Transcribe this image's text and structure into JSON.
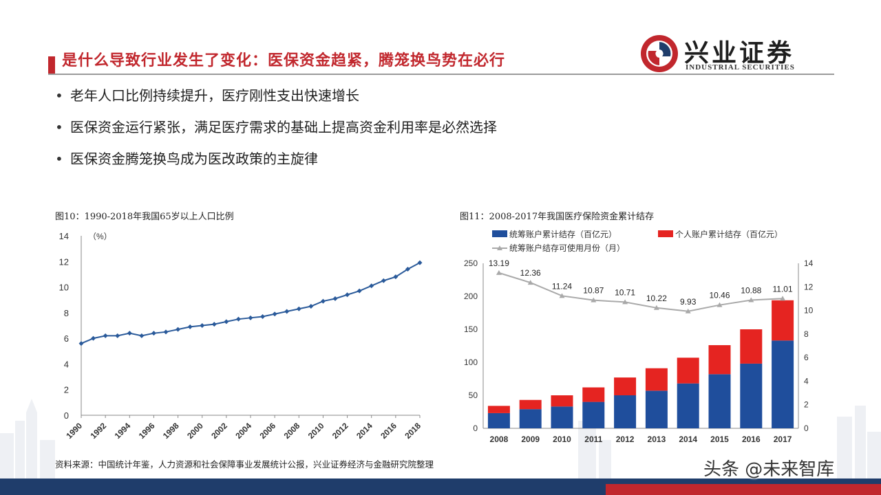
{
  "header": {
    "title": "是什么导致行业发生了变化：医保资金趋紧，腾笼换鸟势在必行",
    "logo_cn": "兴业证券",
    "logo_en": "INDUSTRIAL SECURITIES"
  },
  "bullets": [
    "老年人口比例持续提升，医疗刚性支出快速增长",
    "医保资金运行紧张，满足医疗需求的基础上提高资金利用率是必然选择",
    "医保资金腾笼换鸟成为医改政策的主旋律"
  ],
  "footer": {
    "source": "资料来源：中国统计年鉴，人力资源和社会保障事业发展统计公报，兴业证券经济与金融研究院整理",
    "watermark": "头条 @未来智库"
  },
  "colors": {
    "red": "#c1272d",
    "blue_line": "#2a5a9a",
    "bar_blue": "#1f4e9c",
    "bar_red": "#e52421",
    "gray_line": "#a9a9a9"
  },
  "chart_data": [
    {
      "type": "line",
      "caption": "图10：1990-2018年我国65岁以上人口比例",
      "unit_label": "（%）",
      "x": [
        1990,
        1991,
        1992,
        1993,
        1994,
        1995,
        1996,
        1997,
        1998,
        1999,
        2000,
        2001,
        2002,
        2003,
        2004,
        2005,
        2006,
        2007,
        2008,
        2009,
        2010,
        2011,
        2012,
        2013,
        2014,
        2015,
        2016,
        2017,
        2018
      ],
      "xticks": [
        "1990",
        "1992",
        "1994",
        "1996",
        "1998",
        "2000",
        "2002",
        "2004",
        "2006",
        "2008",
        "2010",
        "2012",
        "2014",
        "2016",
        "2018"
      ],
      "values": [
        5.6,
        6.0,
        6.2,
        6.2,
        6.4,
        6.2,
        6.4,
        6.5,
        6.7,
        6.9,
        7.0,
        7.1,
        7.3,
        7.5,
        7.6,
        7.7,
        7.9,
        8.1,
        8.3,
        8.5,
        8.9,
        9.1,
        9.4,
        9.7,
        10.1,
        10.5,
        10.8,
        11.4,
        11.9
      ],
      "ylim": [
        0,
        14
      ],
      "yticks": [
        "0",
        "2",
        "4",
        "6",
        "8",
        "10",
        "12",
        "14"
      ],
      "grid": false
    },
    {
      "type": "bar",
      "caption": "图11：2008-2017年我国医疗保险资金累计结存",
      "categories": [
        "2008",
        "2009",
        "2010",
        "2011",
        "2012",
        "2013",
        "2014",
        "2015",
        "2016",
        "2017"
      ],
      "series": [
        {
          "name": "统筹账户累计结存（百亿元）",
          "values": [
            23,
            29,
            33,
            40,
            50,
            57,
            68,
            82,
            98,
            133
          ]
        },
        {
          "name": "个人账户累计结存（百亿元）",
          "values": [
            11,
            14,
            17,
            22,
            27,
            34,
            39,
            44,
            52,
            61
          ]
        }
      ],
      "stacked": true,
      "line_series": {
        "name": "统筹账户结存可使用月份（月）",
        "values": [
          13.19,
          12.36,
          11.24,
          10.87,
          10.71,
          10.22,
          9.93,
          10.46,
          10.88,
          11.01
        ],
        "labels": [
          "13.19",
          "12.36",
          "11.24",
          "10.87",
          "10.71",
          "10.22",
          "9.93",
          "10.46",
          "10.88",
          "11.01"
        ]
      },
      "ylim_left": [
        0,
        250
      ],
      "yticks_left": [
        "0",
        "50",
        "100",
        "150",
        "200",
        "250"
      ],
      "ylim_right": [
        0,
        14
      ],
      "yticks_right": [
        "0",
        "2",
        "4",
        "6",
        "8",
        "10",
        "12",
        "14"
      ],
      "legend_position": "top",
      "grid": false
    }
  ]
}
